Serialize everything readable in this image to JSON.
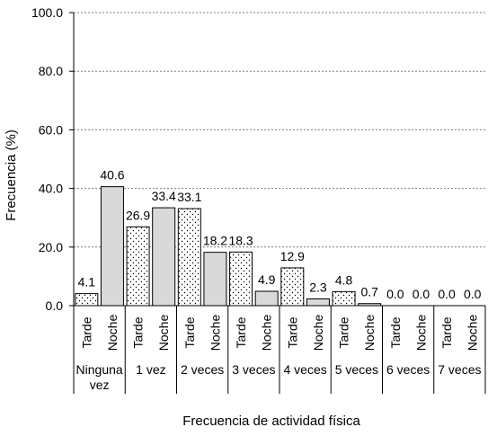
{
  "chart_data": {
    "type": "bar",
    "xlabel": "Frecuencia de actividad física",
    "ylabel": "Frecuencia (%)",
    "ylim": [
      0,
      100
    ],
    "yticks": [
      "0.0",
      "20.0",
      "40.0",
      "60.0",
      "80.0",
      "100.0"
    ],
    "grid": "horizontal dotted",
    "categories": [
      "Ninguna vez",
      "1 vez",
      "2 veces",
      "3 veces",
      "4 veces",
      "5 veces",
      "6 veces",
      "7 veces"
    ],
    "category_lines": [
      [
        "Ninguna",
        "vez"
      ],
      [
        "1 vez"
      ],
      [
        "2 veces"
      ],
      [
        "3 veces"
      ],
      [
        "4 veces"
      ],
      [
        "5 veces"
      ],
      [
        "6 veces"
      ],
      [
        "7 veces"
      ]
    ],
    "series": [
      {
        "name": "Tarde",
        "values": [
          4.1,
          26.9,
          33.1,
          18.3,
          12.9,
          4.8,
          0.0,
          0.0
        ],
        "labels": [
          "4.1",
          "26.9",
          "33.1",
          "18.3",
          "12.9",
          "4.8",
          "0.0",
          "0.0"
        ],
        "fill": "dotted"
      },
      {
        "name": "Noche",
        "values": [
          40.6,
          33.4,
          18.2,
          4.9,
          2.3,
          0.7,
          0.0,
          0.0
        ],
        "labels": [
          "40.6",
          "33.4",
          "18.2",
          "4.9",
          "2.3",
          "0.7",
          "0.0",
          "0.0"
        ],
        "fill": "#d9d9d9"
      }
    ]
  }
}
